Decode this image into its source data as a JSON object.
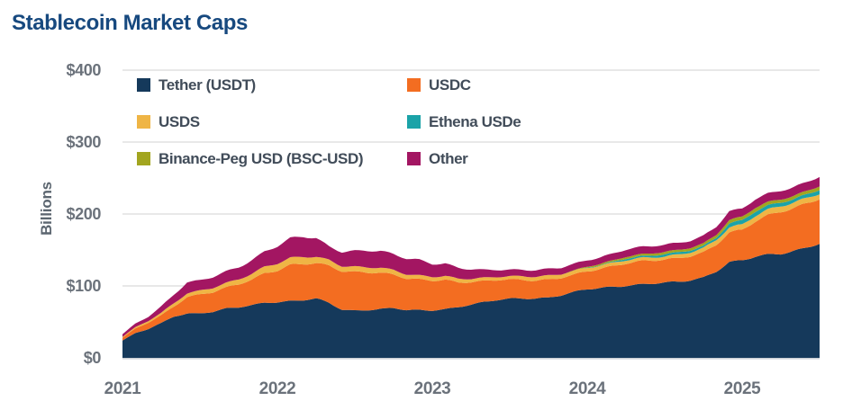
{
  "title": "Stablecoin Market Caps",
  "y_axis": {
    "label": "Billions",
    "ticks": [
      "$400",
      "$300",
      "$200",
      "$100",
      "$0"
    ],
    "tick_values": [
      400,
      300,
      200,
      100,
      0
    ]
  },
  "x_axis": {
    "ticks": [
      "2021",
      "2022",
      "2023",
      "2024",
      "2025"
    ]
  },
  "colors": {
    "title": "#17497F",
    "tick_text": "#6B727B",
    "legend_text": "#414C59",
    "gridline": "#D9D9D9",
    "axis_line": "#C4CAD0",
    "background": "#FFFFFF"
  },
  "chart_data": {
    "type": "area",
    "stacked": true,
    "title": "Stablecoin Market Caps",
    "xlabel": "",
    "ylabel": "Billions",
    "ylim": [
      0,
      400
    ],
    "grid": "horizontal",
    "legend_position": "top-inside",
    "frequency": "monthly",
    "x_start": "2021-01",
    "x_end": "2025-07",
    "categories": [
      "2021-01",
      "2021-02",
      "2021-03",
      "2021-04",
      "2021-05",
      "2021-06",
      "2021-07",
      "2021-08",
      "2021-09",
      "2021-10",
      "2021-11",
      "2021-12",
      "2022-01",
      "2022-02",
      "2022-03",
      "2022-04",
      "2022-05",
      "2022-06",
      "2022-07",
      "2022-08",
      "2022-09",
      "2022-10",
      "2022-11",
      "2022-12",
      "2023-01",
      "2023-02",
      "2023-03",
      "2023-04",
      "2023-05",
      "2023-06",
      "2023-07",
      "2023-08",
      "2023-09",
      "2023-10",
      "2023-11",
      "2023-12",
      "2024-01",
      "2024-02",
      "2024-03",
      "2024-04",
      "2024-05",
      "2024-06",
      "2024-07",
      "2024-08",
      "2024-09",
      "2024-10",
      "2024-11",
      "2024-12",
      "2025-01",
      "2025-02",
      "2025-03",
      "2025-04",
      "2025-05",
      "2025-06",
      "2025-07"
    ],
    "series": [
      {
        "name": "Tether (USDT)",
        "color": "#15395B",
        "values": [
          24,
          34,
          40,
          48,
          58,
          62,
          62,
          64,
          68,
          70,
          73,
          77,
          78,
          79,
          80,
          82,
          76,
          67,
          66,
          67,
          68,
          69,
          66,
          66,
          66,
          68,
          71,
          74,
          77,
          80,
          82,
          83,
          83,
          84,
          87,
          91,
          95,
          97,
          99,
          101,
          102,
          103,
          104,
          105,
          108,
          112,
          121,
          133,
          135,
          140,
          143,
          145,
          149,
          154,
          159
        ]
      },
      {
        "name": "USDC",
        "color": "#F36D21",
        "values": [
          4,
          6,
          9,
          11,
          14,
          23,
          26,
          27,
          29,
          32,
          36,
          41,
          44,
          50,
          50,
          49,
          52,
          54,
          54,
          52,
          50,
          46,
          44,
          43,
          42,
          41,
          34,
          31,
          29,
          28,
          27,
          26,
          25,
          25,
          24,
          24,
          25,
          27,
          29,
          31,
          32,
          32,
          32,
          33,
          34,
          35,
          37,
          41,
          42,
          49,
          55,
          59,
          60,
          61,
          62
        ]
      },
      {
        "name": "USDS",
        "color": "#EFB545",
        "values": [
          1.3,
          2,
          2.5,
          3.5,
          4.5,
          5,
          5.5,
          6,
          6.5,
          7,
          8,
          9,
          9.5,
          9.8,
          10,
          9,
          8,
          7,
          7,
          7,
          7,
          6.5,
          6,
          5.5,
          5.2,
          5.2,
          5,
          4.8,
          4.6,
          4.5,
          4.4,
          5,
          5.3,
          5.3,
          5.3,
          5.3,
          4.8,
          4.6,
          4.5,
          4.5,
          4.4,
          4.3,
          4.4,
          5,
          5.3,
          6,
          6.5,
          7,
          7.5,
          8,
          8,
          7.8,
          7.5,
          7.3,
          7.2
        ]
      },
      {
        "name": "Ethena USDe",
        "color": "#1BA3A8",
        "values": [
          0,
          0,
          0,
          0,
          0,
          0,
          0,
          0,
          0,
          0,
          0,
          0,
          0,
          0,
          0,
          0,
          0,
          0,
          0,
          0,
          0,
          0,
          0,
          0,
          0,
          0,
          0,
          0,
          0,
          0,
          0,
          0,
          0,
          0,
          0,
          0,
          0.2,
          0.4,
          1.3,
          2.3,
          2.4,
          2.6,
          3.1,
          3,
          2.7,
          2.8,
          3.3,
          5.8,
          6,
          5.9,
          5.4,
          4.9,
          4.8,
          5.3,
          5.7
        ]
      },
      {
        "name": "Binance-Peg USD (BSC-USD)",
        "color": "#A2A51F",
        "values": [
          0,
          0,
          0,
          0,
          0,
          0,
          0,
          0,
          0,
          0,
          0,
          0,
          0,
          0,
          0,
          0,
          0,
          0,
          0,
          0,
          0,
          0,
          0,
          0,
          0,
          0,
          0,
          0,
          0,
          0,
          0,
          0,
          0,
          0,
          0,
          0.5,
          1.5,
          1.8,
          2.2,
          2.6,
          2.8,
          3,
          3.1,
          3.3,
          3.5,
          3.8,
          4.2,
          4.6,
          5,
          5,
          4.8,
          4.6,
          4.6,
          4.8,
          5
        ]
      },
      {
        "name": "Other",
        "color": "#A31662",
        "values": [
          3.5,
          5,
          6,
          9,
          12,
          15,
          14,
          15,
          16,
          17,
          19,
          21,
          24,
          27,
          28,
          26,
          19,
          20,
          22,
          23,
          23,
          22,
          22,
          22,
          18,
          17,
          15,
          13,
          11,
          10,
          9,
          9,
          9,
          9,
          9,
          9,
          9,
          9,
          9.5,
          10,
          10,
          10,
          10,
          10,
          10,
          10.5,
          11,
          12,
          11,
          12,
          12,
          12,
          12,
          12,
          13
        ]
      }
    ]
  }
}
